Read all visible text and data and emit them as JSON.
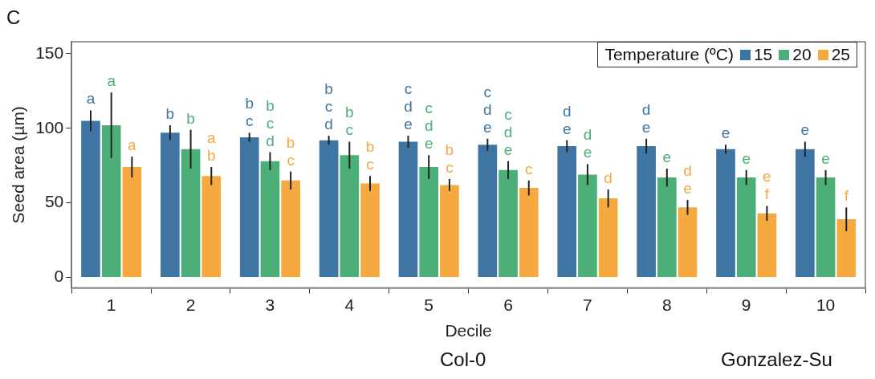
{
  "chart_data": {
    "type": "bar",
    "title": "C",
    "xlabel": "Decile",
    "ylabel": "Seed area (µm)",
    "legend_title": "Temperature (ºC)",
    "legend": "top right",
    "grid": false,
    "categories": [
      "1",
      "2",
      "3",
      "4",
      "5",
      "6",
      "7",
      "8",
      "9",
      "10"
    ],
    "ylim": [
      -7,
      158
    ],
    "yticks": [
      0,
      50,
      100,
      150
    ],
    "series": [
      {
        "name": "15",
        "color": "#3f75a2",
        "values": [
          105,
          97,
          94,
          92,
          91,
          89,
          88,
          88,
          86,
          86
        ],
        "errors": [
          7,
          5,
          3,
          3,
          4,
          4,
          4,
          5,
          3,
          5
        ],
        "value_labels": [
          "a",
          "b",
          "b\nc",
          "b\nc\nd",
          "c\nd\ne",
          "c\nd\ne",
          "d\ne",
          "d\ne",
          "e",
          "e"
        ]
      },
      {
        "name": "20",
        "color": "#4caf78",
        "values": [
          102,
          86,
          78,
          82,
          74,
          72,
          69,
          67,
          67,
          67
        ],
        "errors": [
          22,
          13,
          6,
          9,
          8,
          6,
          7,
          6,
          5,
          5
        ],
        "value_labels": [
          "a",
          "b",
          "b\nc\nd",
          "b\nc",
          "c\nd\ne",
          "c\nd\ne",
          "d\ne",
          "e",
          "e",
          "e"
        ]
      },
      {
        "name": "25",
        "color": "#f5a93f",
        "values": [
          74,
          68,
          65,
          63,
          62,
          60,
          53,
          47,
          43,
          39
        ],
        "errors": [
          7,
          6,
          6,
          5,
          4,
          5,
          6,
          5,
          5,
          8
        ],
        "value_labels": [
          "a",
          "a\nb",
          "b\nc",
          "b\nc",
          "b\nc",
          "c",
          "d",
          "d\ne",
          "e\nf",
          "f"
        ]
      }
    ],
    "annotations": [
      "Col-0",
      "Gonzalez-Su"
    ]
  }
}
